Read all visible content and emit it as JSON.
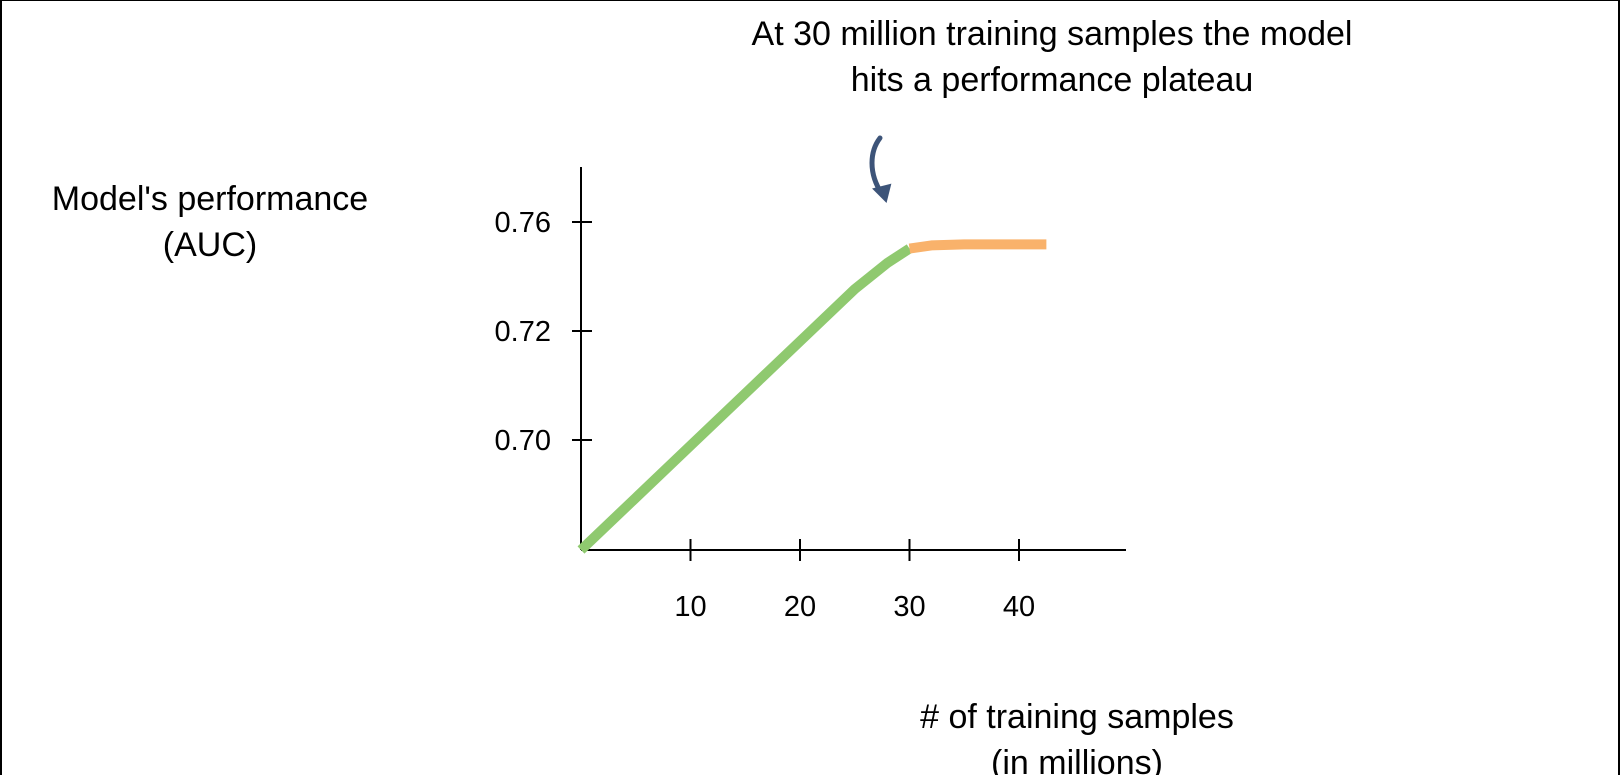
{
  "annotation": {
    "line1": "At 30 million training samples the model",
    "line2": "hits a performance plateau"
  },
  "chart_data": {
    "type": "line",
    "title": "",
    "ylabel_line1": "Model's performance",
    "ylabel_line2": "(AUC)",
    "xlabel_line1": "# of training samples",
    "xlabel_line2": "(in millions)",
    "xticks": [
      10,
      20,
      30,
      40
    ],
    "xtick_labels": [
      "10",
      "20",
      "30",
      "40"
    ],
    "yticks": [
      0.7,
      0.72,
      0.76
    ],
    "ytick_labels": [
      "0.70",
      "0.72",
      "0.76"
    ],
    "growth_color": "#8fc96f",
    "plateau_color": "#f9b26b",
    "arrow_color": "#3d5479",
    "series": [
      {
        "segment": "growth",
        "x": [
          0,
          5,
          10,
          15,
          20,
          25,
          28,
          30
        ],
        "y": [
          0.68,
          0.6899,
          0.6998,
          0.7097,
          0.7196,
          0.7295,
          0.7345,
          0.7372
        ]
      },
      {
        "segment": "plateau",
        "x": [
          30,
          32,
          35,
          40,
          42.5
        ],
        "y": [
          0.7372,
          0.7378,
          0.738,
          0.738,
          0.738
        ]
      }
    ]
  }
}
